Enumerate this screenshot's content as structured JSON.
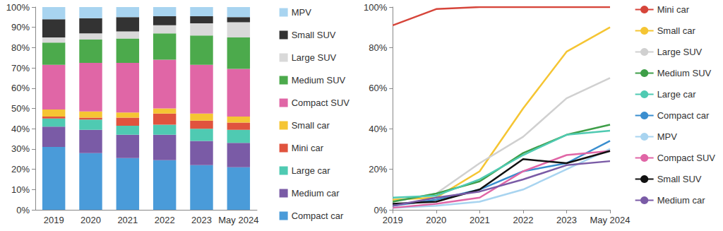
{
  "chart_data": [
    {
      "type": "bar",
      "stacked": true,
      "grid": false,
      "legend": "right",
      "categories": [
        "2019",
        "2020",
        "2021",
        "2022",
        "2023",
        "May 2024"
      ],
      "ylim": [
        0,
        100
      ],
      "yticks": [
        {
          "value": 0,
          "label": "0%"
        },
        {
          "value": 10,
          "label": "10%"
        },
        {
          "value": 20,
          "label": "20%"
        },
        {
          "value": 30,
          "label": "30%"
        },
        {
          "value": 40,
          "label": "40%"
        },
        {
          "value": 50,
          "label": "50%"
        },
        {
          "value": 60,
          "label": "60%"
        },
        {
          "value": 70,
          "label": "70%"
        },
        {
          "value": 80,
          "label": "80%"
        },
        {
          "value": 90,
          "label": "90%"
        },
        {
          "value": 100,
          "label": "100%"
        }
      ],
      "series": [
        {
          "name": "Compact car",
          "color": "#4a9bd9",
          "values": [
            31,
            28,
            25.5,
            24.5,
            22,
            21
          ]
        },
        {
          "name": "Medium car",
          "color": "#7a5ba6",
          "values": [
            10,
            11.5,
            11.5,
            12.5,
            12,
            12
          ]
        },
        {
          "name": "Large car",
          "color": "#4fcab2",
          "values": [
            4,
            5,
            4.5,
            5,
            6,
            6.5
          ]
        },
        {
          "name": "Mini car",
          "color": "#e0533e",
          "values": [
            1,
            1,
            4,
            5.5,
            4,
            3.5
          ]
        },
        {
          "name": "Small car",
          "color": "#f5c533",
          "values": [
            3.5,
            3,
            2.5,
            2.5,
            3.5,
            3
          ]
        },
        {
          "name": "Compact SUV",
          "color": "#e066a6",
          "values": [
            22,
            24,
            24.5,
            24,
            24,
            23.5
          ]
        },
        {
          "name": "Medium SUV",
          "color": "#4caa4c",
          "values": [
            11,
            11.5,
            12,
            13,
            14.5,
            15.5
          ]
        },
        {
          "name": "Large SUV",
          "color": "#d9d9d9",
          "values": [
            2.5,
            3,
            3.5,
            4,
            6,
            7.5
          ]
        },
        {
          "name": "Small SUV",
          "color": "#333333",
          "values": [
            9,
            7.5,
            7,
            4.5,
            3.5,
            2.5
          ]
        },
        {
          "name": "MPV",
          "color": "#a8d4f0",
          "values": [
            6,
            5.5,
            5,
            4.5,
            4.5,
            5
          ]
        }
      ]
    },
    {
      "type": "line",
      "grid": false,
      "legend": "right",
      "categories": [
        "2019",
        "2020",
        "2021",
        "2022",
        "2023",
        "May 2024"
      ],
      "ylim": [
        0,
        100
      ],
      "yticks": [
        {
          "value": 0,
          "label": "0%"
        },
        {
          "value": 20,
          "label": "20%"
        },
        {
          "value": 40,
          "label": "40%"
        },
        {
          "value": 60,
          "label": "60%"
        },
        {
          "value": 80,
          "label": "80%"
        },
        {
          "value": 100,
          "label": "100%"
        }
      ],
      "series": [
        {
          "name": "Mini car",
          "color": "#d6453a",
          "values": [
            91,
            99,
            100,
            100,
            100,
            100
          ]
        },
        {
          "name": "Small car",
          "color": "#f5c533",
          "values": [
            5,
            6,
            19,
            50,
            78,
            90
          ]
        },
        {
          "name": "Large SUV",
          "color": "#d0d0d0",
          "values": [
            4,
            8,
            23,
            36,
            55,
            65
          ]
        },
        {
          "name": "Medium SUV",
          "color": "#3e9e48",
          "values": [
            4,
            8,
            14,
            28,
            37,
            42
          ]
        },
        {
          "name": "Large car",
          "color": "#4fcab2",
          "values": [
            6,
            7,
            15,
            27,
            37,
            39
          ]
        },
        {
          "name": "Compact car",
          "color": "#3a8ecf",
          "values": [
            2,
            5,
            10,
            19,
            23,
            34
          ]
        },
        {
          "name": "MPV",
          "color": "#a8d4f0",
          "values": [
            1,
            2,
            4,
            10,
            20,
            30
          ]
        },
        {
          "name": "Compact SUV",
          "color": "#e066a6",
          "values": [
            1,
            3,
            6,
            19,
            27,
            29
          ]
        },
        {
          "name": "Small SUV",
          "color": "#111111",
          "values": [
            3,
            4,
            10,
            25,
            23,
            29
          ]
        },
        {
          "name": "Medium car",
          "color": "#7a5ba6",
          "values": [
            2,
            6,
            9,
            15,
            22,
            24
          ]
        }
      ]
    }
  ]
}
